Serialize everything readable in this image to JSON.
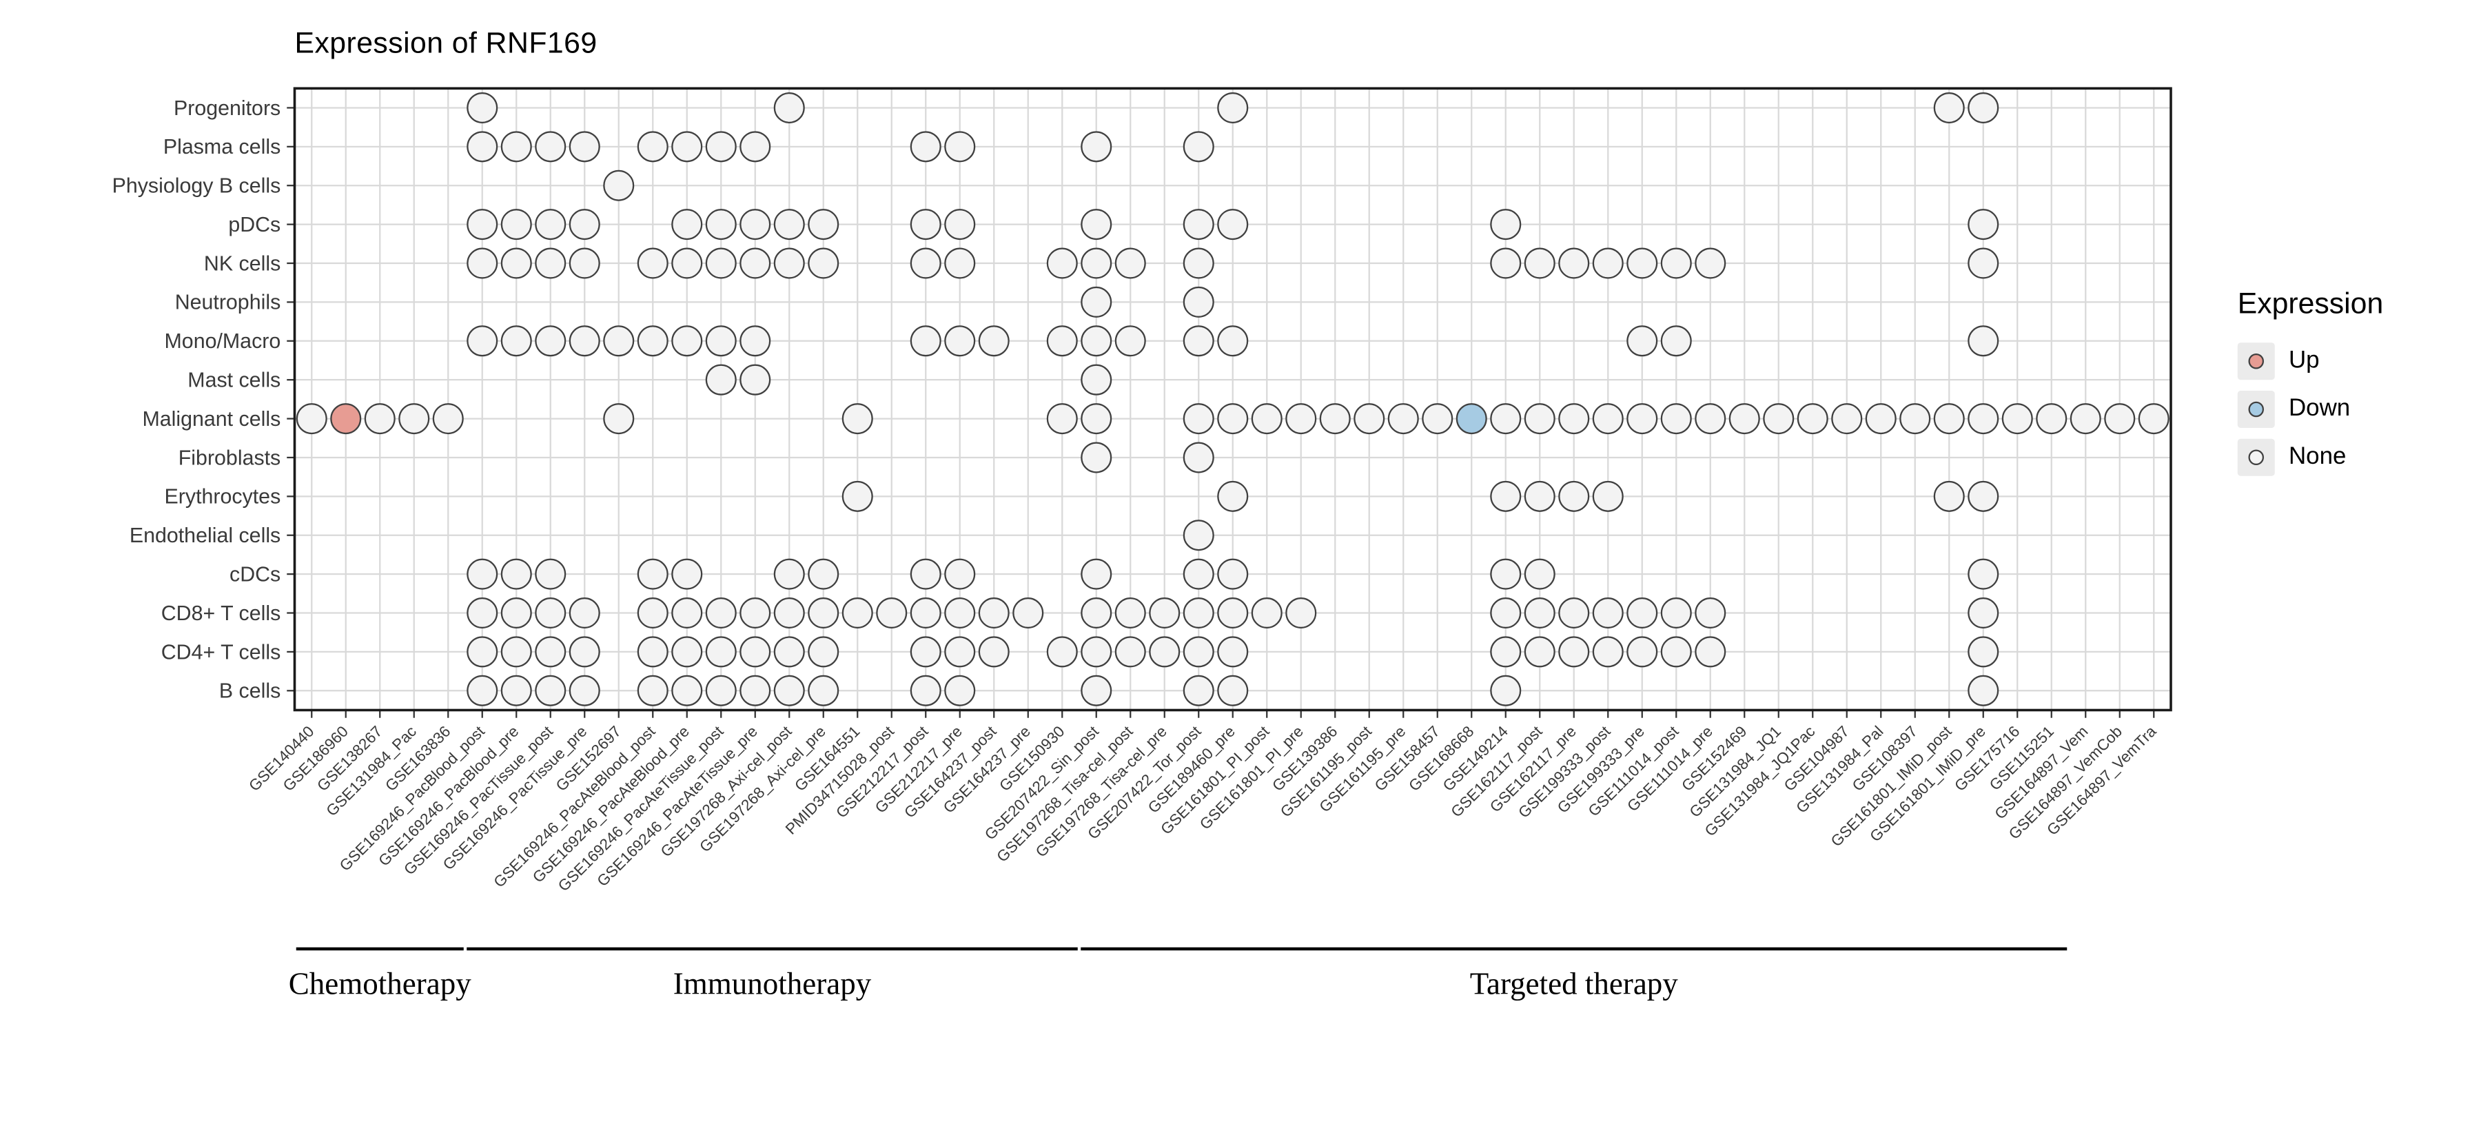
{
  "title": "Expression of RNF169",
  "legend": {
    "title": "Expression",
    "items": [
      {
        "label": "Up",
        "color": "#e79c93"
      },
      {
        "label": "Down",
        "color": "#a6cbe3"
      },
      {
        "label": "None",
        "color": "#f3f3f3"
      }
    ]
  },
  "style_colors": {
    "grid": "#d9d9d9",
    "panel_border": "#1a1a1a",
    "dot_stroke": "#404040",
    "axis_text": "#3a3a3a",
    "tick": "#333333",
    "group_line": "#000000"
  },
  "chart_data": {
    "type": "scatter",
    "title": "Expression of RNF169",
    "legend_title": "Expression",
    "legend_entries": [
      "Up",
      "Down",
      "None"
    ],
    "grid": true,
    "y_categories": [
      "Progenitors",
      "Plasma cells",
      "Physiology B cells",
      "pDCs",
      "NK cells",
      "Neutrophils",
      "Mono/Macro",
      "Mast cells",
      "Malignant cells",
      "Fibroblasts",
      "Erythrocytes",
      "Endothelial cells",
      "cDCs",
      "CD8+ T cells",
      "CD4+ T cells",
      "B cells"
    ],
    "x_categories": [
      "GSE140440",
      "GSE186960",
      "GSE138267",
      "GSE131984_Pac",
      "GSE163836",
      "GSE169246_PacBlood_post",
      "GSE169246_PacBlood_pre",
      "GSE169246_PacTissue_post",
      "GSE169246_PacTissue_pre",
      "GSE152697",
      "GSE169246_PacAteBlood_post",
      "GSE169246_PacAteBlood_pre",
      "GSE169246_PacAteTissue_post",
      "GSE169246_PacAteTissue_pre",
      "GSE197268_Axi-cel_post",
      "GSE197268_Axi-cel_pre",
      "GSE164551",
      "PMID34715028_post",
      "GSE212217_post",
      "GSE212217_pre",
      "GSE164237_post",
      "GSE164237_pre",
      "GSE150930",
      "GSE207422_Sin_post",
      "GSE197268_Tisa-cel_post",
      "GSE197268_Tisa-cel_pre",
      "GSE207422_Tor_post",
      "GSE189460_pre",
      "GSE161801_PI_post",
      "GSE161801_PI_pre",
      "GSE139386",
      "GSE161195_post",
      "GSE161195_pre",
      "GSE158457",
      "GSE168668",
      "GSE149214",
      "GSE162117_post",
      "GSE162117_pre",
      "GSE199333_post",
      "GSE199333_pre",
      "GSE111014_post",
      "GSE111014_pre",
      "GSE152469",
      "GSE131984_JQ1",
      "GSE131984_JQ1Pac",
      "GSE104987",
      "GSE131984_Pal",
      "GSE108397",
      "GSE161801_IMiD_post",
      "GSE161801_IMiD_pre",
      "GSE175716",
      "GSE115251",
      "GSE164897_Vem",
      "GSE164897_VemCob",
      "GSE164897_VemTra"
    ],
    "x_groups": [
      {
        "label": "Chemotherapy",
        "cols": [
          1,
          5
        ],
        "line_cols": [
          1,
          5
        ]
      },
      {
        "label": "Immunotherapy",
        "cols": [
          6,
          23
        ],
        "line_cols": [
          6,
          23
        ]
      },
      {
        "label": "Targeted therapy",
        "cols": [
          24,
          55
        ],
        "line_cols": [
          24,
          52
        ]
      }
    ],
    "points": [
      {
        "row": "Progenitors",
        "none": [
          6,
          15,
          28,
          49,
          50
        ]
      },
      {
        "row": "Plasma cells",
        "none": [
          6,
          7,
          8,
          9,
          11,
          12,
          13,
          14,
          19,
          20,
          24,
          27
        ]
      },
      {
        "row": "Physiology B cells",
        "none": [
          10
        ]
      },
      {
        "row": "pDCs",
        "none": [
          6,
          7,
          8,
          9,
          12,
          13,
          14,
          15,
          16,
          19,
          20,
          24,
          27,
          28,
          36,
          50
        ]
      },
      {
        "row": "NK cells",
        "none": [
          6,
          7,
          8,
          9,
          11,
          12,
          13,
          14,
          15,
          16,
          19,
          20,
          23,
          24,
          25,
          27,
          36,
          37,
          38,
          39,
          40,
          41,
          42,
          50
        ]
      },
      {
        "row": "Neutrophils",
        "none": [
          24,
          27
        ]
      },
      {
        "row": "Mono/Macro",
        "none": [
          6,
          7,
          8,
          9,
          10,
          11,
          12,
          13,
          14,
          19,
          20,
          21,
          23,
          24,
          25,
          27,
          28,
          40,
          41,
          50
        ]
      },
      {
        "row": "Mast cells",
        "none": [
          13,
          14,
          24
        ]
      },
      {
        "row": "Malignant cells",
        "up": [
          2
        ],
        "down": [
          35
        ],
        "none": [
          1,
          3,
          4,
          5,
          10,
          17,
          23,
          24,
          27,
          28,
          29,
          30,
          31,
          32,
          33,
          34,
          36,
          37,
          38,
          39,
          40,
          41,
          42,
          43,
          44,
          45,
          46,
          47,
          48,
          49,
          50,
          51,
          52,
          53,
          54,
          55
        ]
      },
      {
        "row": "Fibroblasts",
        "none": [
          24,
          27
        ]
      },
      {
        "row": "Erythrocytes",
        "none": [
          17,
          28,
          36,
          37,
          38,
          39,
          49,
          50
        ]
      },
      {
        "row": "Endothelial cells",
        "none": [
          27
        ]
      },
      {
        "row": "cDCs",
        "none": [
          6,
          7,
          8,
          11,
          12,
          15,
          16,
          19,
          20,
          24,
          27,
          28,
          36,
          37,
          50
        ]
      },
      {
        "row": "CD8+ T cells",
        "none": [
          6,
          7,
          8,
          9,
          11,
          12,
          13,
          14,
          15,
          16,
          17,
          18,
          19,
          20,
          21,
          22,
          24,
          25,
          26,
          27,
          28,
          29,
          30,
          36,
          37,
          38,
          39,
          40,
          41,
          42,
          50
        ]
      },
      {
        "row": "CD4+ T cells",
        "none": [
          6,
          7,
          8,
          9,
          11,
          12,
          13,
          14,
          15,
          16,
          19,
          20,
          21,
          23,
          24,
          25,
          26,
          27,
          28,
          36,
          37,
          38,
          39,
          40,
          41,
          42,
          50
        ]
      },
      {
        "row": "B cells",
        "none": [
          6,
          7,
          8,
          9,
          11,
          12,
          13,
          14,
          15,
          16,
          19,
          20,
          24,
          27,
          28,
          36,
          50
        ]
      }
    ]
  }
}
